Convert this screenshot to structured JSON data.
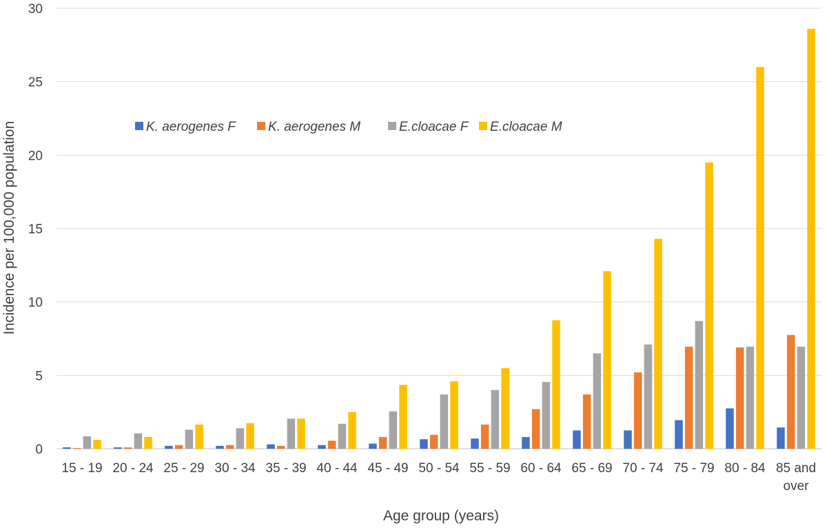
{
  "chart_data": {
    "type": "bar",
    "title": "",
    "xlabel": "Age group (years)",
    "ylabel": "Incidence per 100,000 population",
    "ylim": [
      0,
      30
    ],
    "yticks": [
      "0",
      "5",
      "10",
      "15",
      "20",
      "25",
      "30"
    ],
    "grid": true,
    "legend_position": "top-left",
    "categories": [
      [
        "15 - 19"
      ],
      [
        "20 - 24"
      ],
      [
        "25 - 29"
      ],
      [
        "30 - 34"
      ],
      [
        "35 - 39"
      ],
      [
        "40 - 44"
      ],
      [
        "45 - 49"
      ],
      [
        "50 - 54"
      ],
      [
        "55 - 59"
      ],
      [
        "60 - 64"
      ],
      [
        "65 - 69"
      ],
      [
        "70 - 74"
      ],
      [
        "75 - 79"
      ],
      [
        "80 - 84"
      ],
      [
        "85 and",
        "over"
      ]
    ],
    "series": [
      {
        "name": "K. aerogenes F",
        "color": "#4472C4",
        "values": [
          0.1,
          0.1,
          0.2,
          0.2,
          0.3,
          0.25,
          0.35,
          0.65,
          0.7,
          0.8,
          1.25,
          1.25,
          1.95,
          2.75,
          1.45
        ]
      },
      {
        "name": "K. aerogenes M",
        "color": "#ED7D31",
        "values": [
          0.05,
          0.1,
          0.25,
          0.25,
          0.2,
          0.55,
          0.8,
          0.95,
          1.65,
          2.7,
          3.7,
          5.2,
          6.95,
          6.9,
          7.75
        ]
      },
      {
        "name": "E.cloacae F",
        "color": "#A5A5A5",
        "values": [
          0.85,
          1.05,
          1.3,
          1.4,
          2.05,
          1.7,
          2.55,
          3.7,
          4.0,
          4.55,
          6.5,
          7.1,
          8.7,
          6.95,
          6.95
        ]
      },
      {
        "name": "E.cloacae M",
        "color": "#FFC000",
        "values": [
          0.6,
          0.8,
          1.65,
          1.75,
          2.05,
          2.5,
          4.35,
          4.6,
          5.5,
          8.75,
          12.1,
          14.3,
          19.5,
          26.0,
          28.6
        ]
      }
    ]
  }
}
